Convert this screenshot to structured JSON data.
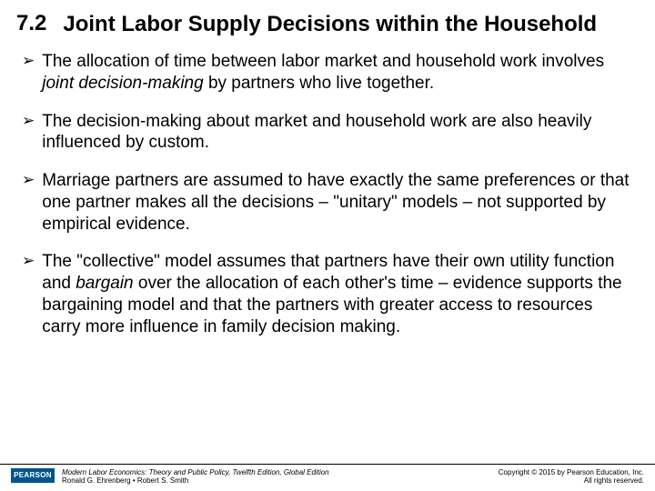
{
  "header": {
    "section_number": "7.2",
    "title": "Joint  Labor Supply Decisions within the Household"
  },
  "bullets": [
    {
      "pre": "The allocation of time between labor market and household work involves ",
      "em": "joint decision-making",
      "post": " by partners who live together."
    },
    {
      "pre": "The decision-making about market and household work are also heavily influenced by custom.",
      "em": "",
      "post": ""
    },
    {
      "pre": "Marriage partners are assumed to have exactly the same preferences or that one partner makes all the decisions – \"unitary\" models – not supported by empirical evidence.",
      "em": "",
      "post": ""
    },
    {
      "pre": "The \"collective\" model assumes that partners have their own utility function and ",
      "em": "bargain",
      "post": " over the allocation of each other's time – evidence supports the bargaining model and that the partners with greater access to resources carry more influence in family decision making."
    }
  ],
  "footer": {
    "logo_text": "PEARSON",
    "book_title": "Modern Labor Economics: Theory and Public Policy, Twelfth Edition, Global Edition",
    "authors": "Ronald G. Ehrenberg • Robert S. Smith",
    "copyright_line1": "Copyright © 2015 by Pearson Education, Inc.",
    "copyright_line2": "All rights reserved."
  },
  "style": {
    "bullet_glyph": "➢",
    "title_fontsize": 24,
    "body_fontsize": 19,
    "footer_fontsize": 8,
    "logo_bg": "#00558c",
    "text_color": "#000000",
    "background": "#ffffff"
  }
}
